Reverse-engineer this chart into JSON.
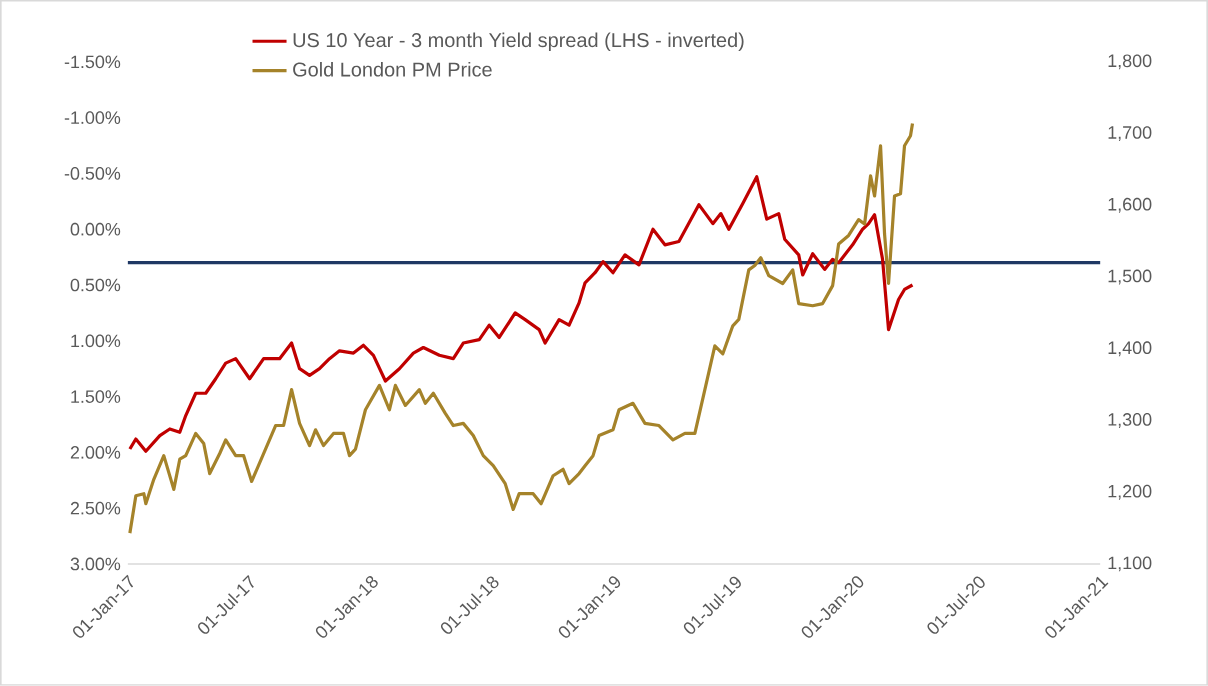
{
  "chart_data": {
    "type": "line",
    "xlim": [
      "2017-01-01",
      "2021-01-01"
    ],
    "xticks": [
      {
        "value": "2017-01-01",
        "label": "01-Jan-17"
      },
      {
        "value": "2017-07-01",
        "label": "01-Jul-17"
      },
      {
        "value": "2018-01-01",
        "label": "01-Jan-18"
      },
      {
        "value": "2018-07-01",
        "label": "01-Jul-18"
      },
      {
        "value": "2019-01-01",
        "label": "01-Jan-19"
      },
      {
        "value": "2019-07-01",
        "label": "01-Jul-19"
      },
      {
        "value": "2020-01-01",
        "label": "01-Jan-20"
      },
      {
        "value": "2020-07-01",
        "label": "01-Jul-20"
      },
      {
        "value": "2021-01-01",
        "label": "01-Jan-21"
      }
    ],
    "ylim": [
      3.0,
      -1.5
    ],
    "yticks": [
      {
        "value": -1.5,
        "label": "-1.50%"
      },
      {
        "value": -1.0,
        "label": "-1.00%"
      },
      {
        "value": -0.5,
        "label": "-0.50%"
      },
      {
        "value": 0.0,
        "label": "0.00%"
      },
      {
        "value": 0.5,
        "label": "0.50%"
      },
      {
        "value": 1.0,
        "label": "1.00%"
      },
      {
        "value": 1.5,
        "label": "1.50%"
      },
      {
        "value": 2.0,
        "label": "2.00%"
      },
      {
        "value": 2.5,
        "label": "2.50%"
      },
      {
        "value": 3.0,
        "label": "3.00%"
      }
    ],
    "y2lim": [
      1100,
      1800
    ],
    "y2ticks": [
      {
        "value": 1100,
        "label": "1,100"
      },
      {
        "value": 1200,
        "label": "1,200"
      },
      {
        "value": 1300,
        "label": "1,300"
      },
      {
        "value": 1400,
        "label": "1,400"
      },
      {
        "value": 1500,
        "label": "1,500"
      },
      {
        "value": 1600,
        "label": "1,600"
      },
      {
        "value": 1700,
        "label": "1,700"
      },
      {
        "value": 1800,
        "label": "1,800"
      }
    ],
    "legend": "top",
    "grid": false,
    "marker": "none",
    "line_style": "solid",
    "ref_lines": [
      {
        "axis": "y",
        "value": 0.3,
        "color": "#1f3864"
      }
    ],
    "series": [
      {
        "name": "US 10 Year - 3 month Yield spread (LHS - inverted)",
        "color": "#c00000",
        "x": [
          "2017-01-04",
          "2017-01-13",
          "2017-01-28",
          "2017-02-18",
          "2017-03-05",
          "2017-03-20",
          "2017-03-29",
          "2017-04-13",
          "2017-04-28",
          "2017-05-13",
          "2017-05-28",
          "2017-06-12",
          "2017-07-03",
          "2017-07-24",
          "2017-08-17",
          "2017-09-04",
          "2017-09-16",
          "2017-10-01",
          "2017-10-16",
          "2017-10-31",
          "2017-11-15",
          "2017-12-06",
          "2017-12-21",
          "2018-01-05",
          "2018-01-23",
          "2018-02-13",
          "2018-03-06",
          "2018-03-21",
          "2018-04-14",
          "2018-05-05",
          "2018-05-20",
          "2018-06-13",
          "2018-06-28",
          "2018-07-13",
          "2018-08-06",
          "2018-08-21",
          "2018-09-11",
          "2018-09-20",
          "2018-10-11",
          "2018-10-26",
          "2018-11-10",
          "2018-11-19",
          "2018-12-04",
          "2018-12-16",
          "2018-12-31",
          "2019-01-18",
          "2019-02-08",
          "2019-03-01",
          "2019-03-19",
          "2019-04-09",
          "2019-05-09",
          "2019-05-30",
          "2019-06-11",
          "2019-06-23",
          "2019-07-14",
          "2019-08-04",
          "2019-08-19",
          "2019-09-06",
          "2019-09-15",
          "2019-10-06",
          "2019-10-12",
          "2019-10-27",
          "2019-11-14",
          "2019-11-26",
          "2019-12-05",
          "2019-12-26",
          "2020-01-10",
          "2020-01-19",
          "2020-01-28",
          "2020-02-09",
          "2020-02-18",
          "2020-03-04",
          "2020-03-13",
          "2020-03-25"
        ],
        "values": [
          1.97,
          1.88,
          1.99,
          1.85,
          1.79,
          1.82,
          1.67,
          1.47,
          1.47,
          1.34,
          1.2,
          1.16,
          1.34,
          1.16,
          1.16,
          1.02,
          1.25,
          1.31,
          1.25,
          1.16,
          1.09,
          1.11,
          1.04,
          1.13,
          1.36,
          1.25,
          1.11,
          1.06,
          1.13,
          1.16,
          1.02,
          0.99,
          0.86,
          0.97,
          0.75,
          0.81,
          0.9,
          1.02,
          0.81,
          0.86,
          0.66,
          0.48,
          0.39,
          0.29,
          0.39,
          0.23,
          0.32,
          0.0,
          0.14,
          0.11,
          -0.22,
          -0.05,
          -0.14,
          0.0,
          -0.23,
          -0.47,
          -0.09,
          -0.14,
          0.09,
          0.23,
          0.41,
          0.22,
          0.36,
          0.27,
          0.3,
          0.14,
          0.0,
          -0.05,
          -0.13,
          0.27,
          0.9,
          0.63,
          0.54,
          0.5
        ]
      },
      {
        "name": "Gold London PM Price",
        "color": "#a5832a",
        "axis": "y2",
        "x": [
          "2017-01-04",
          "2017-01-13",
          "2017-01-25",
          "2017-01-28",
          "2017-02-09",
          "2017-02-24",
          "2017-03-11",
          "2017-03-20",
          "2017-03-29",
          "2017-04-13",
          "2017-04-25",
          "2017-05-04",
          "2017-05-19",
          "2017-05-28",
          "2017-06-12",
          "2017-06-24",
          "2017-07-06",
          "2017-07-24",
          "2017-08-11",
          "2017-08-23",
          "2017-09-04",
          "2017-09-16",
          "2017-10-01",
          "2017-10-10",
          "2017-10-22",
          "2017-11-06",
          "2017-11-21",
          "2017-11-30",
          "2017-12-09",
          "2017-12-24",
          "2018-01-14",
          "2018-01-29",
          "2018-02-07",
          "2018-02-22",
          "2018-03-15",
          "2018-03-24",
          "2018-04-05",
          "2018-04-23",
          "2018-05-05",
          "2018-05-20",
          "2018-06-04",
          "2018-06-19",
          "2018-07-04",
          "2018-07-22",
          "2018-08-03",
          "2018-08-12",
          "2018-09-02",
          "2018-09-14",
          "2018-10-02",
          "2018-10-17",
          "2018-10-26",
          "2018-11-10",
          "2018-11-19",
          "2018-12-01",
          "2018-12-10",
          "2018-12-31",
          "2019-01-09",
          "2019-01-30",
          "2019-02-17",
          "2019-03-10",
          "2019-03-31",
          "2019-04-18",
          "2019-05-03",
          "2019-05-18",
          "2019-06-02",
          "2019-06-14",
          "2019-06-29",
          "2019-07-08",
          "2019-07-23",
          "2019-08-01",
          "2019-08-10",
          "2019-08-22",
          "2019-09-12",
          "2019-09-27",
          "2019-10-06",
          "2019-10-27",
          "2019-11-11",
          "2019-11-26",
          "2019-12-05",
          "2019-12-20",
          "2020-01-04",
          "2020-01-13",
          "2020-01-22",
          "2020-01-28",
          "2020-02-06",
          "2020-02-12",
          "2020-02-18",
          "2020-02-27",
          "2020-03-07",
          "2020-03-13",
          "2020-03-22",
          "2020-03-25"
        ],
        "values": [
          1143,
          1195,
          1198,
          1184,
          1218,
          1251,
          1204,
          1246,
          1251,
          1282,
          1268,
          1226,
          1254,
          1273,
          1251,
          1251,
          1215,
          1254,
          1293,
          1293,
          1343,
          1296,
          1265,
          1287,
          1265,
          1282,
          1282,
          1251,
          1260,
          1315,
          1349,
          1315,
          1349,
          1321,
          1343,
          1324,
          1338,
          1310,
          1293,
          1296,
          1279,
          1251,
          1237,
          1212,
          1176,
          1198,
          1198,
          1184,
          1223,
          1232,
          1212,
          1226,
          1237,
          1251,
          1279,
          1287,
          1315,
          1324,
          1296,
          1293,
          1273,
          1282,
          1282,
          1343,
          1404,
          1393,
          1432,
          1441,
          1510,
          1516,
          1527,
          1502,
          1491,
          1510,
          1463,
          1460,
          1463,
          1488,
          1546,
          1558,
          1580,
          1574,
          1641,
          1613,
          1683,
          1560,
          1491,
          1613,
          1616,
          1683,
          1697,
          1714
        ]
      }
    ]
  }
}
